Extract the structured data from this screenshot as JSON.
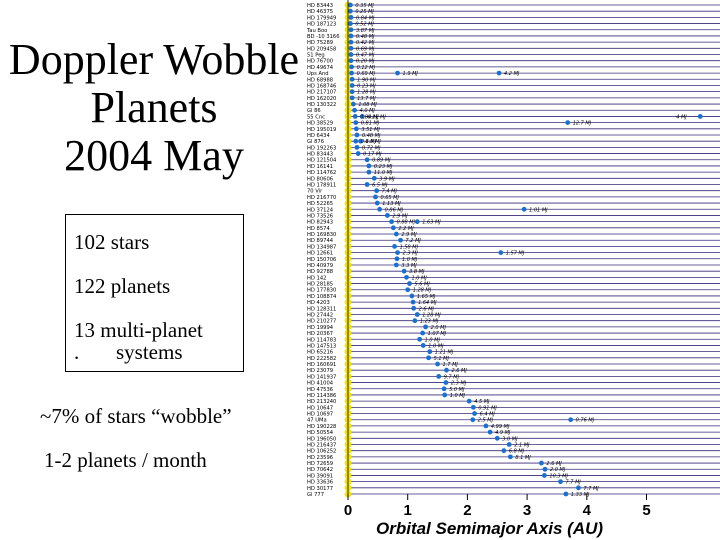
{
  "slide": {
    "title_lines": [
      "Doppler Wobble",
      "Planets",
      "2004 May"
    ],
    "stats": {
      "stars": "102 stars",
      "planets": "122 planets",
      "multi_line1": "13 multi-planet",
      "multi_line2": ".       systems"
    },
    "wobble_note": "~7% of stars “wobble”",
    "rate_note": "1-2 planets / month"
  },
  "colors": {
    "planet": "#1a6fd0",
    "star": "#f2e200",
    "row_line": "#3a2a7a",
    "grid": "#000000"
  },
  "chart_data": {
    "type": "scatter",
    "xlabel": "Orbital Semimajor Axis (AU)",
    "xlim": [
      0,
      6
    ],
    "xticks": [
      0,
      1,
      2,
      3,
      4,
      5
    ],
    "grid": "horizontal row lines",
    "rows": [
      {
        "star": "HD 83443",
        "planets": [
          {
            "a": 0.04,
            "mass": "0.35 MJ"
          }
        ]
      },
      {
        "star": "HD 46375",
        "planets": [
          {
            "a": 0.04,
            "mass": "0.25 MJ"
          }
        ]
      },
      {
        "star": "HD 179949",
        "planets": [
          {
            "a": 0.05,
            "mass": "0.84 MJ"
          }
        ]
      },
      {
        "star": "HD 187123",
        "planets": [
          {
            "a": 0.04,
            "mass": "0.52 MJ"
          }
        ]
      },
      {
        "star": "Tau Boo",
        "planets": [
          {
            "a": 0.05,
            "mass": "3.87 MJ"
          }
        ]
      },
      {
        "star": "BD -10 3166",
        "planets": [
          {
            "a": 0.05,
            "mass": "0.48 MJ"
          }
        ]
      },
      {
        "star": "HD 75289",
        "planets": [
          {
            "a": 0.05,
            "mass": "0.42 MJ"
          }
        ]
      },
      {
        "star": "HD 209458",
        "planets": [
          {
            "a": 0.05,
            "mass": "0.69 MJ"
          }
        ]
      },
      {
        "star": "51 Peg",
        "planets": [
          {
            "a": 0.05,
            "mass": "0.47 MJ"
          }
        ]
      },
      {
        "star": "HD 76700",
        "planets": [
          {
            "a": 0.05,
            "mass": "0.20 MJ"
          }
        ]
      },
      {
        "star": "HD 49674",
        "planets": [
          {
            "a": 0.06,
            "mass": "0.12 MJ"
          }
        ]
      },
      {
        "star": "Ups And",
        "planets": [
          {
            "a": 0.06,
            "mass": "0.69 MJ"
          },
          {
            "a": 0.83,
            "mass": "1.9 MJ"
          },
          {
            "a": 2.53,
            "mass": "4.2 MJ"
          }
        ]
      },
      {
        "star": "HD 68988",
        "planets": [
          {
            "a": 0.07,
            "mass": "1.90 MJ"
          }
        ]
      },
      {
        "star": "HD 168746",
        "planets": [
          {
            "a": 0.07,
            "mass": "0.23 MJ"
          }
        ]
      },
      {
        "star": "HD 217107",
        "planets": [
          {
            "a": 0.07,
            "mass": "1.28 MJ"
          }
        ]
      },
      {
        "star": "HD 162020",
        "planets": [
          {
            "a": 0.07,
            "mass": "13.7 MJ"
          }
        ]
      },
      {
        "star": "HD 130322",
        "planets": [
          {
            "a": 0.09,
            "mass": "1.08 MJ"
          }
        ]
      },
      {
        "star": "Gl 86",
        "planets": [
          {
            "a": 0.11,
            "mass": "4.0 MJ"
          }
        ]
      },
      {
        "star": "55 Cnc",
        "planets": [
          {
            "a": 0.12,
            "mass": "0.84 MJ"
          },
          {
            "a": 0.24,
            "mass": "0.21 MJ"
          },
          {
            "a": 5.9,
            "mass": "4 MJ"
          }
        ]
      },
      {
        "star": "HD 38529",
        "planets": [
          {
            "a": 0.13,
            "mass": "0.81 MJ"
          },
          {
            "a": 3.68,
            "mass": "12.7 MJ"
          }
        ]
      },
      {
        "star": "HD 195019",
        "planets": [
          {
            "a": 0.14,
            "mass": "3.51 MJ"
          }
        ]
      },
      {
        "star": "HD 6434",
        "planets": [
          {
            "a": 0.15,
            "mass": "0.48 MJ"
          }
        ]
      },
      {
        "star": "Gl 876",
        "planets": [
          {
            "a": 0.13,
            "mass": "0.6 MJ"
          },
          {
            "a": 0.21,
            "mass": "1.9 MJ"
          }
        ]
      },
      {
        "star": "HD 192263",
        "planets": [
          {
            "a": 0.15,
            "mass": "0.72 MJ"
          }
        ]
      },
      {
        "star": "HD 83443",
        "planets": [
          {
            "a": 0.17,
            "mass": "0.17 MJ"
          }
        ]
      },
      {
        "star": "HD 121504",
        "planets": [
          {
            "a": 0.32,
            "mass": "0.89 MJ"
          }
        ]
      },
      {
        "star": "HD 16141",
        "planets": [
          {
            "a": 0.35,
            "mass": "0.23 MJ"
          }
        ]
      },
      {
        "star": "HD 114762",
        "planets": [
          {
            "a": 0.35,
            "mass": "11.0 MJ"
          }
        ]
      },
      {
        "star": "HD 80606",
        "planets": [
          {
            "a": 0.44,
            "mass": "3.9 MJ"
          }
        ]
      },
      {
        "star": "HD 178911",
        "planets": [
          {
            "a": 0.32,
            "mass": "6.5 MJ"
          }
        ]
      },
      {
        "star": "70 Vir",
        "planets": [
          {
            "a": 0.48,
            "mass": "7.4 MJ"
          }
        ]
      },
      {
        "star": "HD 216770",
        "planets": [
          {
            "a": 0.46,
            "mass": "0.65 MJ"
          }
        ]
      },
      {
        "star": "HD 52265",
        "planets": [
          {
            "a": 0.49,
            "mass": "1.13 MJ"
          }
        ]
      },
      {
        "star": "HD 37124",
        "planets": [
          {
            "a": 0.53,
            "mass": "0.86 MJ"
          },
          {
            "a": 2.95,
            "mass": "1.01 MJ"
          }
        ]
      },
      {
        "star": "HD 73526",
        "planets": [
          {
            "a": 0.66,
            "mass": "2.9 MJ"
          }
        ]
      },
      {
        "star": "HD 82943",
        "planets": [
          {
            "a": 0.73,
            "mass": "0.88 MJ"
          },
          {
            "a": 1.16,
            "mass": "1.63 MJ"
          }
        ]
      },
      {
        "star": "HD 8574",
        "planets": [
          {
            "a": 0.76,
            "mass": "2.2 MJ"
          }
        ]
      },
      {
        "star": "HD 169830",
        "planets": [
          {
            "a": 0.81,
            "mass": "2.9 MJ"
          }
        ]
      },
      {
        "star": "HD 89744",
        "planets": [
          {
            "a": 0.88,
            "mass": "7.2 MJ"
          }
        ]
      },
      {
        "star": "HD 134987",
        "planets": [
          {
            "a": 0.78,
            "mass": "1.58 MJ"
          }
        ]
      },
      {
        "star": "HD 12661",
        "planets": [
          {
            "a": 0.83,
            "mass": "2.3 MJ"
          },
          {
            "a": 2.56,
            "mass": "1.57 MJ"
          }
        ]
      },
      {
        "star": "HD 150706",
        "planets": [
          {
            "a": 0.82,
            "mass": "1.0 MJ"
          }
        ]
      },
      {
        "star": "HD 40979",
        "planets": [
          {
            "a": 0.81,
            "mass": "3.3 MJ"
          }
        ]
      },
      {
        "star": "HD 92788",
        "planets": [
          {
            "a": 0.94,
            "mass": "3.8 MJ"
          }
        ]
      },
      {
        "star": "HD 142",
        "planets": [
          {
            "a": 0.98,
            "mass": "1.0 MJ"
          }
        ]
      },
      {
        "star": "HD 28185",
        "planets": [
          {
            "a": 1.03,
            "mass": "5.6 MJ"
          }
        ]
      },
      {
        "star": "HD 177830",
        "planets": [
          {
            "a": 1.0,
            "mass": "1.28 MJ"
          }
        ]
      },
      {
        "star": "HD 108874",
        "planets": [
          {
            "a": 1.07,
            "mass": "1.65 MJ"
          }
        ]
      },
      {
        "star": "HD 4203",
        "planets": [
          {
            "a": 1.09,
            "mass": "1.64 MJ"
          }
        ]
      },
      {
        "star": "HD 128311",
        "planets": [
          {
            "a": 1.1,
            "mass": "2.6 MJ"
          }
        ]
      },
      {
        "star": "HD 27442",
        "planets": [
          {
            "a": 1.16,
            "mass": "1.28 MJ"
          }
        ]
      },
      {
        "star": "HD 210277",
        "planets": [
          {
            "a": 1.12,
            "mass": "1.23 MJ"
          }
        ]
      },
      {
        "star": "HD 19994",
        "planets": [
          {
            "a": 1.3,
            "mass": "2.0 MJ"
          }
        ]
      },
      {
        "star": "HD 20367",
        "planets": [
          {
            "a": 1.25,
            "mass": "1.07 MJ"
          }
        ]
      },
      {
        "star": "HD 114783",
        "planets": [
          {
            "a": 1.2,
            "mass": "1.0 MJ"
          }
        ]
      },
      {
        "star": "HD 147513",
        "planets": [
          {
            "a": 1.26,
            "mass": "1.0 MJ"
          }
        ]
      },
      {
        "star": "HD 65216",
        "planets": [
          {
            "a": 1.37,
            "mass": "1.21 MJ"
          }
        ]
      },
      {
        "star": "HD 222582",
        "planets": [
          {
            "a": 1.35,
            "mass": "5.1 MJ"
          }
        ]
      },
      {
        "star": "HD 160691",
        "planets": [
          {
            "a": 1.5,
            "mass": "1.7 MJ"
          }
        ]
      },
      {
        "star": "HD 23079",
        "planets": [
          {
            "a": 1.65,
            "mass": "2.6 MJ"
          }
        ]
      },
      {
        "star": "HD 141937",
        "planets": [
          {
            "a": 1.52,
            "mass": "9.7 MJ"
          }
        ]
      },
      {
        "star": "HD 41004",
        "planets": [
          {
            "a": 1.64,
            "mass": "2.3 MJ"
          }
        ]
      },
      {
        "star": "HD 47536",
        "planets": [
          {
            "a": 1.61,
            "mass": "5.0 MJ"
          }
        ]
      },
      {
        "star": "HD 114386",
        "planets": [
          {
            "a": 1.62,
            "mass": "1.0 MJ"
          }
        ]
      },
      {
        "star": "HD 213240",
        "planets": [
          {
            "a": 2.03,
            "mass": "4.5 MJ"
          }
        ]
      },
      {
        "star": "HD 10647",
        "planets": [
          {
            "a": 2.1,
            "mass": "0.91 MJ"
          }
        ]
      },
      {
        "star": "HD 10697",
        "planets": [
          {
            "a": 2.12,
            "mass": "6.4 MJ"
          }
        ]
      },
      {
        "star": "47 UMa",
        "planets": [
          {
            "a": 2.09,
            "mass": "2.5 MJ"
          },
          {
            "a": 3.73,
            "mass": "0.76 MJ"
          }
        ]
      },
      {
        "star": "HD 190228",
        "planets": [
          {
            "a": 2.31,
            "mass": "4.99 MJ"
          }
        ]
      },
      {
        "star": "HD 50554",
        "planets": [
          {
            "a": 2.38,
            "mass": "4.9 MJ"
          }
        ]
      },
      {
        "star": "HD 196050",
        "planets": [
          {
            "a": 2.5,
            "mass": "3.0 MJ"
          }
        ]
      },
      {
        "star": "HD 216437",
        "planets": [
          {
            "a": 2.7,
            "mass": "2.1 MJ"
          }
        ]
      },
      {
        "star": "HD 106252",
        "planets": [
          {
            "a": 2.61,
            "mass": "6.8 MJ"
          }
        ]
      },
      {
        "star": "HD 23596",
        "planets": [
          {
            "a": 2.72,
            "mass": "8.1 MJ"
          }
        ]
      },
      {
        "star": "HD 72659",
        "planets": [
          {
            "a": 3.24,
            "mass": "2.6 MJ"
          }
        ]
      },
      {
        "star": "HD 70642",
        "planets": [
          {
            "a": 3.3,
            "mass": "2.0 MJ"
          }
        ]
      },
      {
        "star": "HD 39091",
        "planets": [
          {
            "a": 3.29,
            "mass": "10.3 MJ"
          }
        ]
      },
      {
        "star": "HD 33636",
        "planets": [
          {
            "a": 3.56,
            "mass": "7.7 MJ"
          }
        ]
      },
      {
        "star": "HD 30177",
        "planets": [
          {
            "a": 3.86,
            "mass": "7.7 MJ"
          }
        ]
      },
      {
        "star": "Gl 777",
        "planets": [
          {
            "a": 3.65,
            "mass": "1.33 MJ"
          }
        ]
      }
    ],
    "annotations": [
      {
        "text": "1.34 MJ"
      },
      {
        "text": "0.48 MJ"
      },
      {
        "text": "0.84 MJ"
      },
      {
        "text": "0.52 MJ"
      },
      {
        "text": "3.87 MJ"
      },
      {
        "text": "0.48 MJ"
      },
      {
        "text": "0.42 MJ"
      },
      {
        "text": "0.69 MJ"
      },
      {
        "text": "0.47 MJ"
      },
      {
        "text": "0.20 MJ"
      },
      {
        "text": "0.12 MJ"
      },
      {
        "text": "0.69 MJ"
      },
      {
        "text": "1.90 MJ"
      },
      {
        "text": "0.23 MJ"
      },
      {
        "text": "1.28 MJ"
      },
      {
        "text": "13.7 MJ"
      },
      {
        "text": "1.08 MJ"
      },
      {
        "text": "4.0 MJ"
      },
      {
        "text": "0.84 MJ"
      },
      {
        "text": "0.81 MJ"
      },
      {
        "text": "3.51 MJ"
      },
      {
        "text": "0.48 MJ"
      },
      {
        "text": "0.6 MJ"
      },
      {
        "text": "0.72 MJ"
      },
      {
        "text": "1.9 MJ"
      },
      {
        "text": "4.2 MJ"
      },
      {
        "text": "0.21 MJ"
      },
      {
        "text": "4 MJ"
      },
      {
        "text": "12.7 MJ"
      },
      {
        "text": "1.01 MJ"
      },
      {
        "text": "2.6 MJ"
      },
      {
        "text": "1.57 MJ"
      },
      {
        "text": "0.76 MJ"
      }
    ]
  }
}
